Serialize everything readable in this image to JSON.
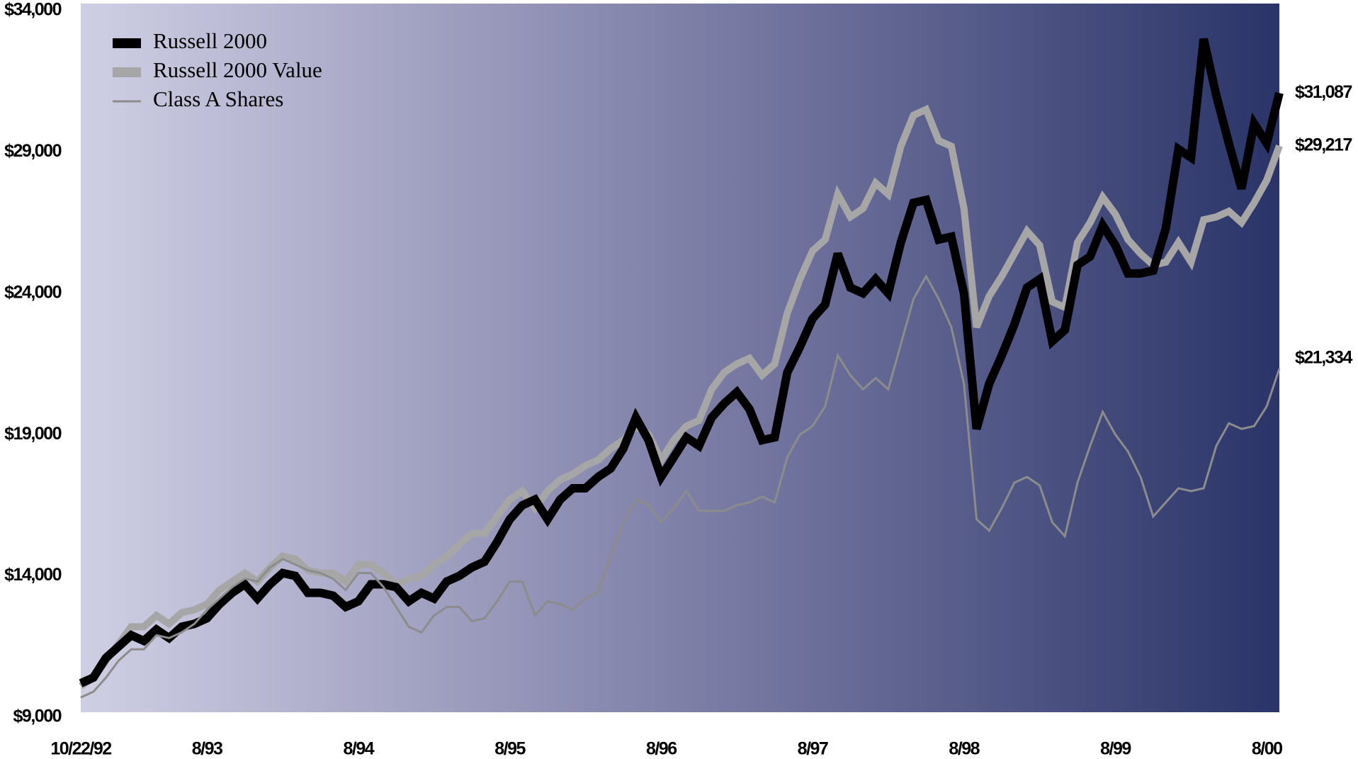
{
  "chart_data": {
    "type": "line",
    "categories": [
      "10/22/92",
      null,
      null,
      null,
      null,
      null,
      null,
      null,
      null,
      null,
      "8/93",
      null,
      null,
      null,
      null,
      null,
      null,
      null,
      null,
      null,
      null,
      null,
      "8/94",
      null,
      null,
      null,
      null,
      null,
      null,
      null,
      null,
      null,
      null,
      null,
      "8/95",
      null,
      null,
      null,
      null,
      null,
      null,
      null,
      null,
      null,
      null,
      null,
      "8/96",
      null,
      null,
      null,
      null,
      null,
      null,
      null,
      null,
      null,
      null,
      null,
      "8/97",
      null,
      null,
      null,
      null,
      null,
      null,
      null,
      null,
      null,
      null,
      null,
      "8/98",
      null,
      null,
      null,
      null,
      null,
      null,
      null,
      null,
      null,
      null,
      null,
      "8/99",
      null,
      null,
      null,
      null,
      null,
      null,
      null,
      null,
      null,
      null,
      null,
      "8/00",
      null
    ],
    "series": [
      {
        "name": "Russell 2000",
        "color": "#000000",
        "last_label": "$31,087",
        "values": [
          10200,
          10400,
          11100,
          11500,
          11900,
          11700,
          12100,
          11800,
          12200,
          12300,
          12500,
          13000,
          13400,
          13700,
          13200,
          13700,
          14100,
          14000,
          13400,
          13400,
          13300,
          12900,
          13100,
          13700,
          13700,
          13600,
          13100,
          13400,
          13200,
          13800,
          14000,
          14300,
          14500,
          15200,
          16000,
          16500,
          16700,
          16000,
          16700,
          17100,
          17100,
          17500,
          17800,
          18500,
          19600,
          18800,
          17500,
          18200,
          18900,
          18600,
          19600,
          20100,
          20500,
          19900,
          18800,
          18900,
          21200,
          22100,
          23100,
          23600,
          25400,
          24200,
          24000,
          24500,
          24000,
          25800,
          27200,
          27300,
          25900,
          26000,
          24000,
          19200,
          20800,
          21800,
          22900,
          24200,
          24500,
          22300,
          22700,
          25000,
          25300,
          26400,
          25700,
          24700,
          24700,
          24800,
          26300,
          29100,
          28800,
          33000,
          31000,
          29300,
          27700,
          30000,
          29300,
          31087
        ]
      },
      {
        "name": "Russell 2000 Value",
        "color": "#a6a6a6",
        "last_label": "$29,217",
        "values": [
          10100,
          10400,
          11000,
          11600,
          12200,
          12200,
          12600,
          12300,
          12700,
          12800,
          13000,
          13500,
          13800,
          14100,
          13800,
          14300,
          14700,
          14600,
          14200,
          14100,
          14100,
          13800,
          14400,
          14400,
          14100,
          13700,
          13900,
          14000,
          14400,
          14700,
          15100,
          15500,
          15500,
          16100,
          16700,
          17000,
          16400,
          17000,
          17400,
          17600,
          17900,
          18100,
          18500,
          18800,
          19300,
          19000,
          18100,
          18800,
          19300,
          19500,
          20600,
          21200,
          21500,
          21700,
          21100,
          21500,
          23300,
          24500,
          25500,
          25900,
          27500,
          26700,
          27000,
          27900,
          27500,
          29200,
          30300,
          30500,
          29400,
          29200,
          27000,
          22800,
          23900,
          24600,
          25400,
          26200,
          25700,
          23700,
          23500,
          25800,
          26500,
          27400,
          26800,
          25900,
          25400,
          25000,
          25100,
          25800,
          25100,
          26600,
          26700,
          26900,
          26500,
          27200,
          28000,
          29217
        ]
      },
      {
        "name": "Class A Shares",
        "color": "#8c8c8c",
        "last_label": "$21,334",
        "values": [
          9700,
          9900,
          10400,
          11000,
          11400,
          11400,
          11900,
          11800,
          12000,
          12300,
          12800,
          13200,
          13600,
          13900,
          13800,
          14300,
          14600,
          14400,
          14200,
          14100,
          13900,
          13500,
          14100,
          14100,
          13600,
          12900,
          12200,
          12000,
          12600,
          12900,
          12900,
          12400,
          12500,
          13100,
          13800,
          13800,
          12600,
          13100,
          13000,
          12800,
          13200,
          13400,
          14700,
          15900,
          16700,
          16500,
          15900,
          16400,
          17000,
          16300,
          16300,
          16300,
          16500,
          16600,
          16800,
          16600,
          18200,
          19000,
          19300,
          20000,
          21800,
          21100,
          20600,
          21000,
          20600,
          22200,
          23800,
          24600,
          23800,
          22800,
          20800,
          16000,
          15600,
          16400,
          17300,
          17500,
          17200,
          15900,
          15400,
          17300,
          18600,
          19800,
          19000,
          18400,
          17500,
          16100,
          16600,
          17100,
          17000,
          17100,
          18600,
          19400,
          19200,
          19300,
          20000,
          21334
        ]
      }
    ],
    "ylim": [
      9000,
      34000
    ],
    "yticks": [
      {
        "value": 9000,
        "label": "$9,000"
      },
      {
        "value": 14000,
        "label": "$14,000"
      },
      {
        "value": 19000,
        "label": "$19,000"
      },
      {
        "value": 24000,
        "label": "$24,000"
      },
      {
        "value": 29000,
        "label": "$29,000"
      },
      {
        "value": 34000,
        "label": "$34,000"
      }
    ],
    "grid": false,
    "legend": "upper left"
  }
}
